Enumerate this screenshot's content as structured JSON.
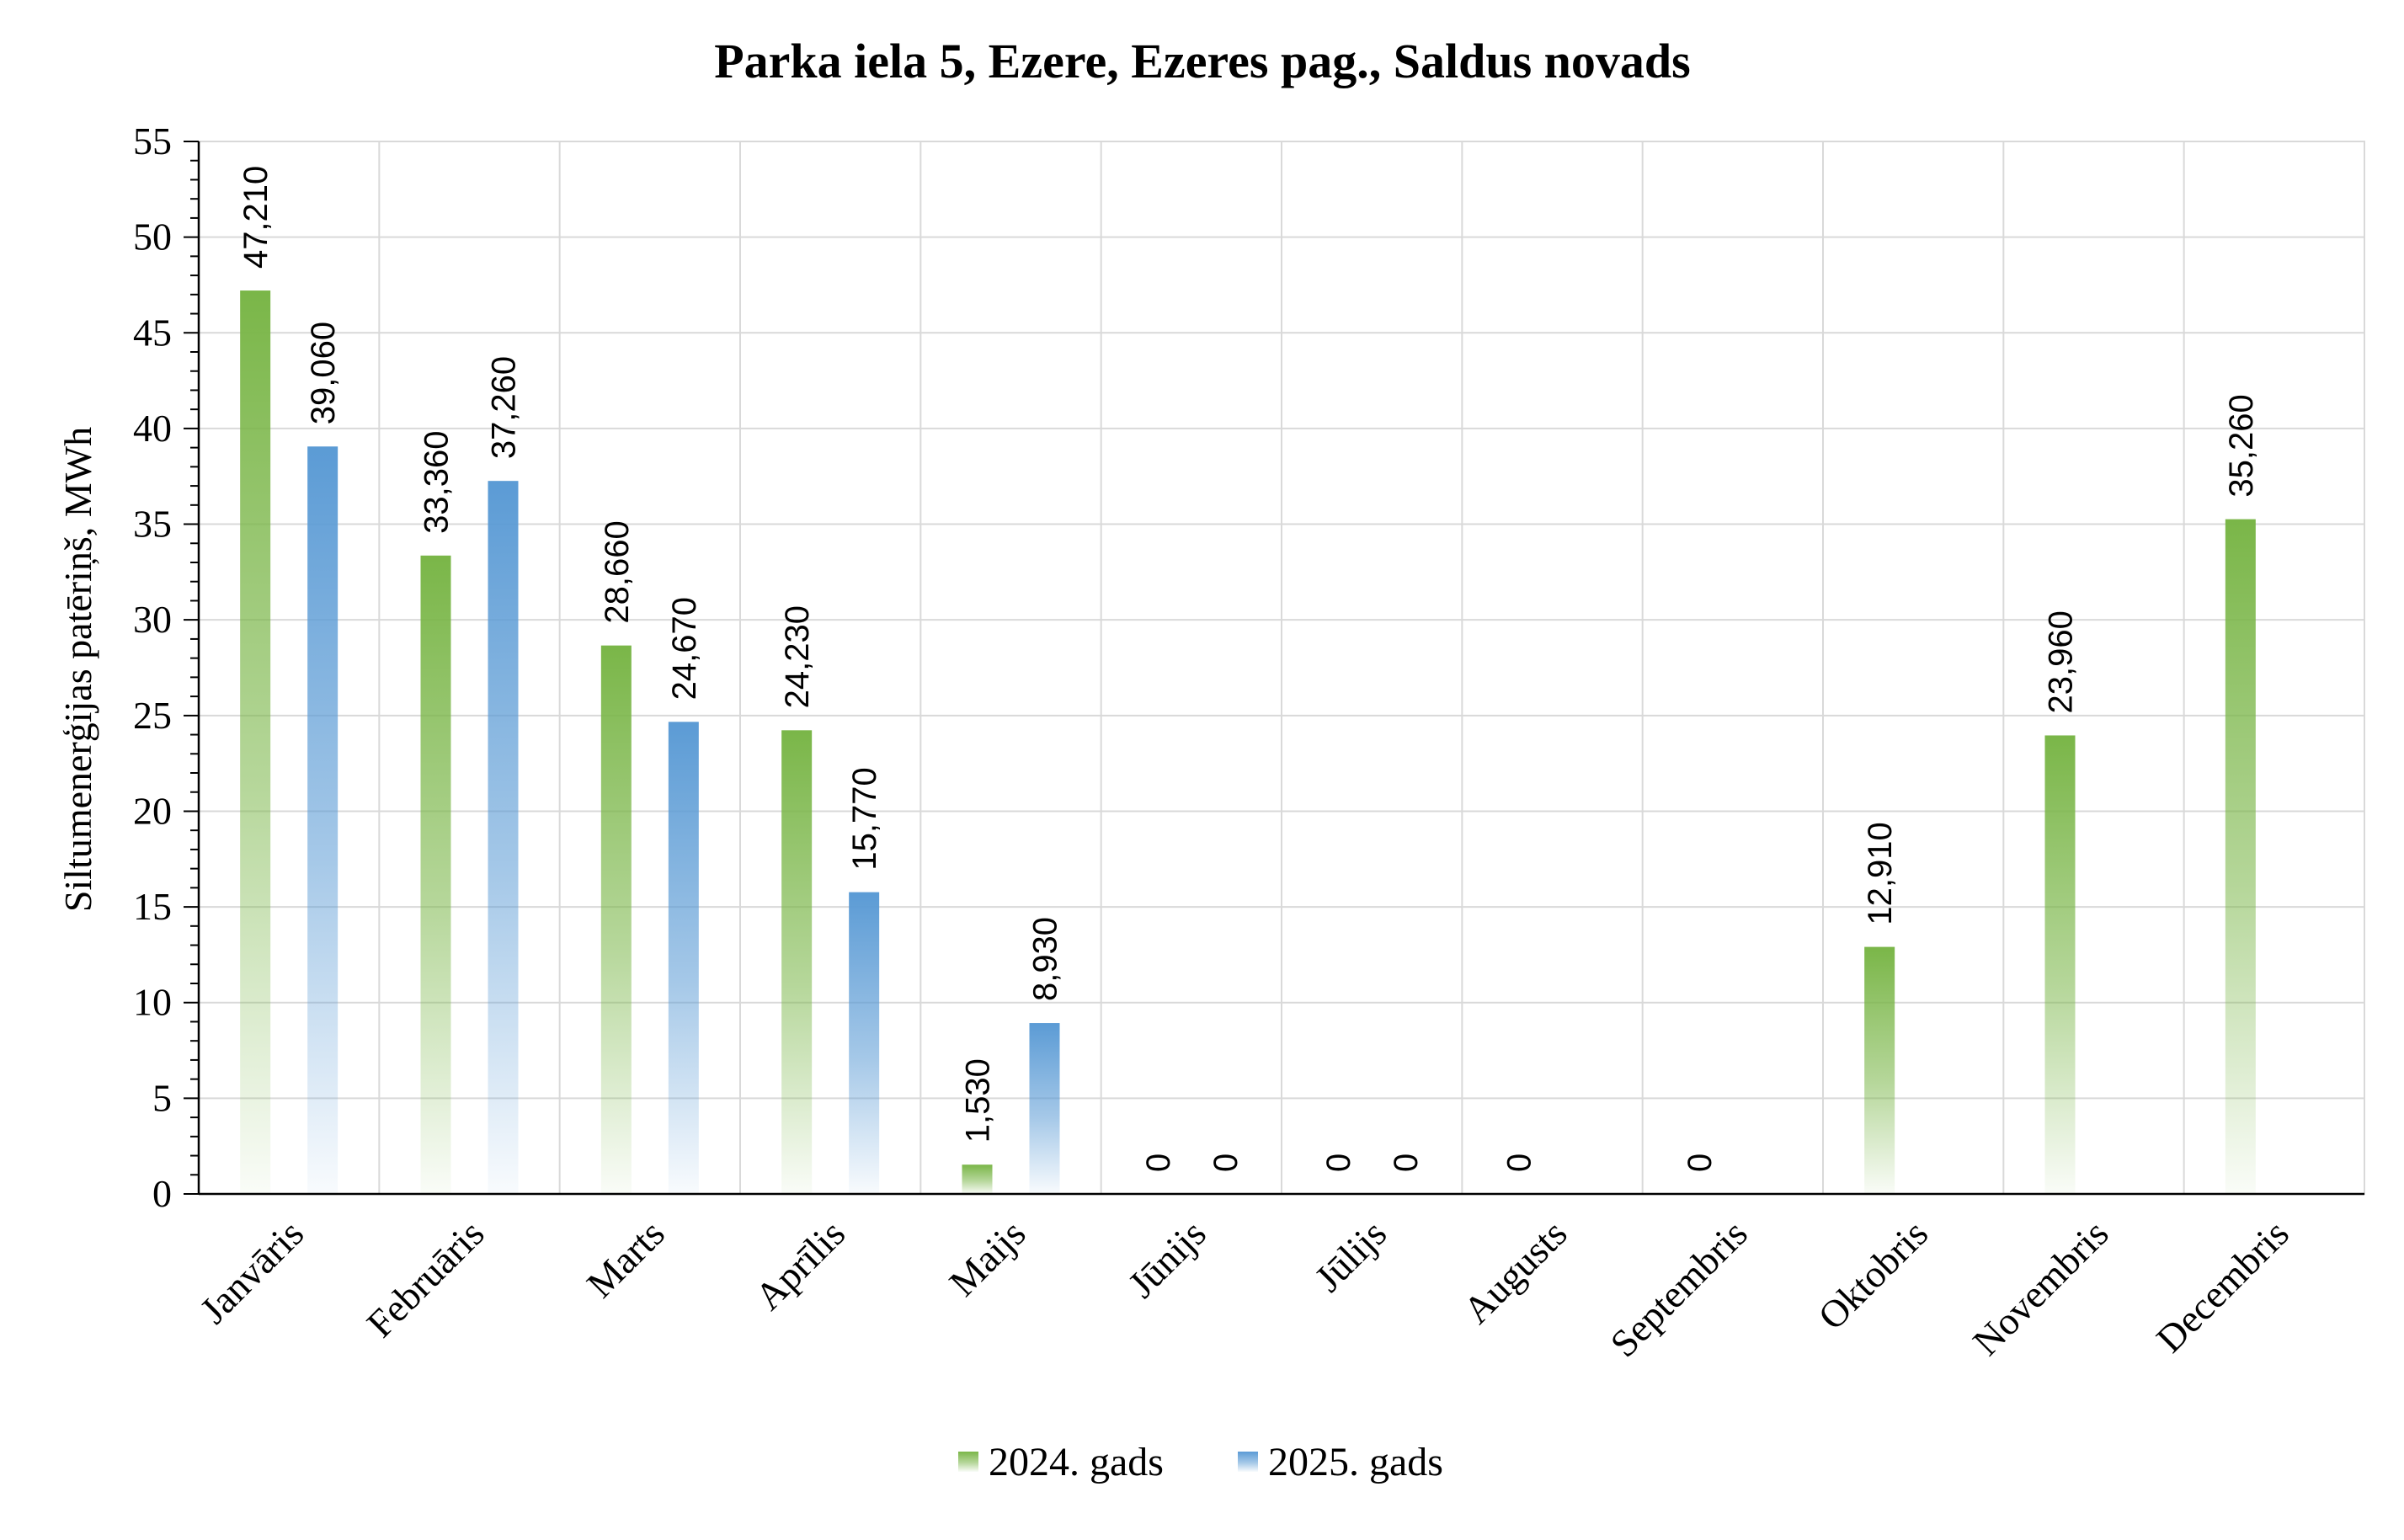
{
  "chart_data": {
    "type": "bar",
    "title": "Parka iela 5, Ezere, Ezeres pag., Saldus novads",
    "ylabel": "Siltumenerģijas patēriņš, MWh",
    "xlabel": "",
    "ylim": [
      0,
      55
    ],
    "yticks": [
      0,
      5,
      10,
      15,
      20,
      25,
      30,
      35,
      40,
      45,
      50,
      55
    ],
    "grid": true,
    "legend_position": "bottom",
    "categories": [
      "Janvāris",
      "Februāris",
      "Marts",
      "Aprīlis",
      "Maijs",
      "Jūnijs",
      "Jūlijs",
      "Augusts",
      "Septembris",
      "Oktobris",
      "Novembris",
      "Decembris"
    ],
    "series": [
      {
        "name": "2024. gads",
        "color": "#7ab648",
        "values": [
          47.21,
          33.36,
          28.66,
          24.23,
          1.53,
          0,
          0,
          0,
          0,
          12.91,
          23.96,
          35.26
        ],
        "labels": [
          "47,210",
          "33,360",
          "28,660",
          "24,230",
          "1,530",
          "0",
          "0",
          "0",
          "0",
          "12,910",
          "23,960",
          "35,260"
        ]
      },
      {
        "name": "2025. gads",
        "color": "#5b9bd5",
        "values": [
          39.06,
          37.26,
          24.67,
          15.77,
          8.93,
          0,
          0,
          null,
          null,
          null,
          null,
          null
        ],
        "labels": [
          "39,060",
          "37,260",
          "24,670",
          "15,770",
          "8,930",
          "0",
          "0",
          null,
          null,
          null,
          null,
          null
        ]
      }
    ]
  }
}
